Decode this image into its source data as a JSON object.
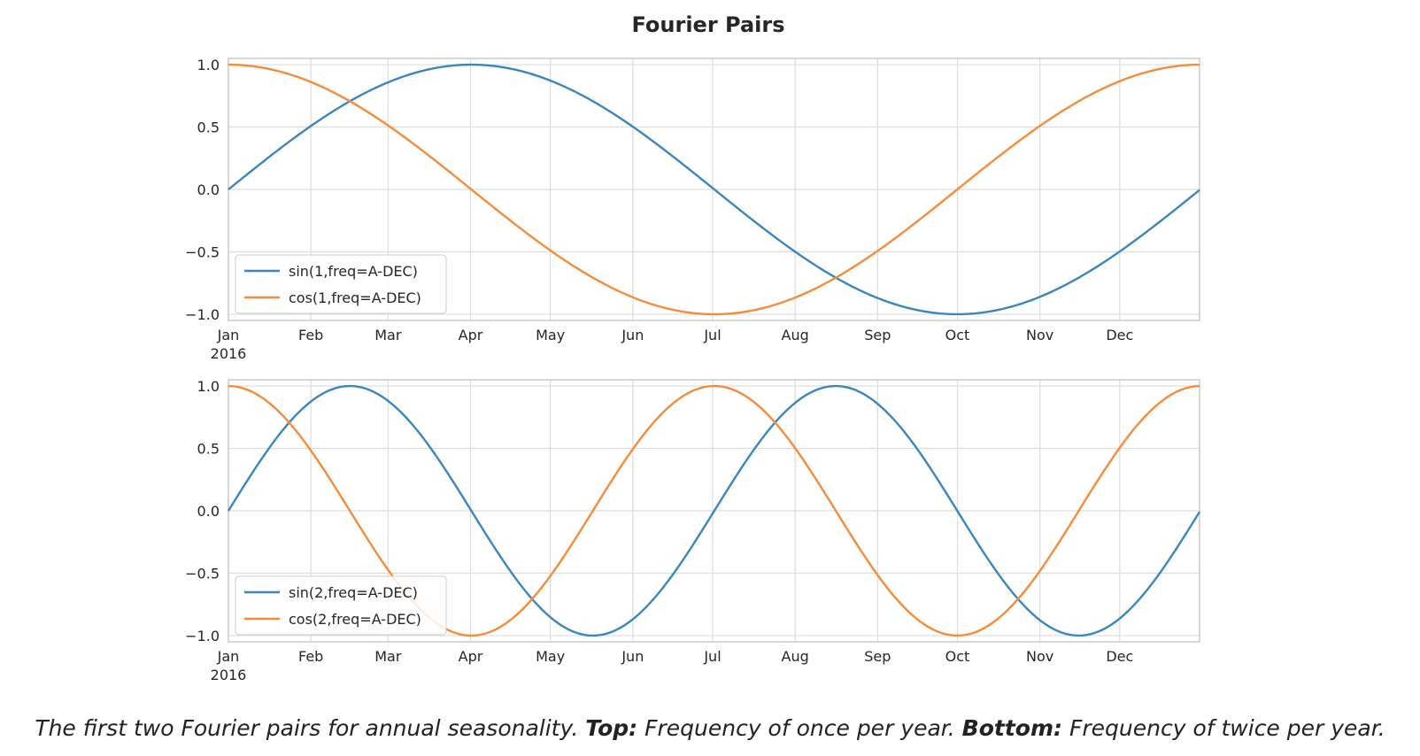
{
  "figure": {
    "title": "Fourier Pairs"
  },
  "caption": {
    "lead": "The first two Fourier pairs for annual seasonality.",
    "top_label": "Top:",
    "top_text": "Frequency of once per year.",
    "bottom_label": "Bottom:",
    "bottom_text": "Frequency of twice per year."
  },
  "colors": {
    "sin": "#3a86bd",
    "cos": "#f58c3a",
    "grid": "#dddddd",
    "axes_edge": "#cccccc",
    "text": "#262626"
  },
  "chart_data": [
    {
      "type": "line",
      "x_axis": {
        "kind": "date",
        "range": [
          "2016-01-01",
          "2016-12-31"
        ],
        "tick_labels": [
          "Jan\n2016",
          "Feb",
          "Mar",
          "Apr",
          "May",
          "Jun",
          "Jul",
          "Aug",
          "Sep",
          "Oct",
          "Nov",
          "Dec"
        ]
      },
      "ylim": [
        -1.05,
        1.05
      ],
      "yticks": [
        1.0,
        0.5,
        0.0,
        -0.5,
        -1.0
      ],
      "ytick_labels": [
        "1.0",
        "0.5",
        "0.0",
        "−0.5",
        "−1.0"
      ],
      "grid": true,
      "legend": "lower-left",
      "series": [
        {
          "name": "sin(1,freq=A-DEC)",
          "function": "sin",
          "order": 1,
          "period_days": 365.25,
          "color": "#3a86bd"
        },
        {
          "name": "cos(1,freq=A-DEC)",
          "function": "cos",
          "order": 1,
          "period_days": 365.25,
          "color": "#f58c3a"
        }
      ]
    },
    {
      "type": "line",
      "x_axis": {
        "kind": "date",
        "range": [
          "2016-01-01",
          "2016-12-31"
        ],
        "tick_labels": [
          "Jan\n2016",
          "Feb",
          "Mar",
          "Apr",
          "May",
          "Jun",
          "Jul",
          "Aug",
          "Sep",
          "Oct",
          "Nov",
          "Dec"
        ]
      },
      "ylim": [
        -1.05,
        1.05
      ],
      "yticks": [
        1.0,
        0.5,
        0.0,
        -0.5,
        -1.0
      ],
      "ytick_labels": [
        "1.0",
        "0.5",
        "0.0",
        "−0.5",
        "−1.0"
      ],
      "grid": true,
      "legend": "lower-left",
      "series": [
        {
          "name": "sin(2,freq=A-DEC)",
          "function": "sin",
          "order": 2,
          "period_days": 365.25,
          "color": "#3a86bd"
        },
        {
          "name": "cos(2,freq=A-DEC)",
          "function": "cos",
          "order": 2,
          "period_days": 365.25,
          "color": "#f58c3a"
        }
      ]
    }
  ]
}
